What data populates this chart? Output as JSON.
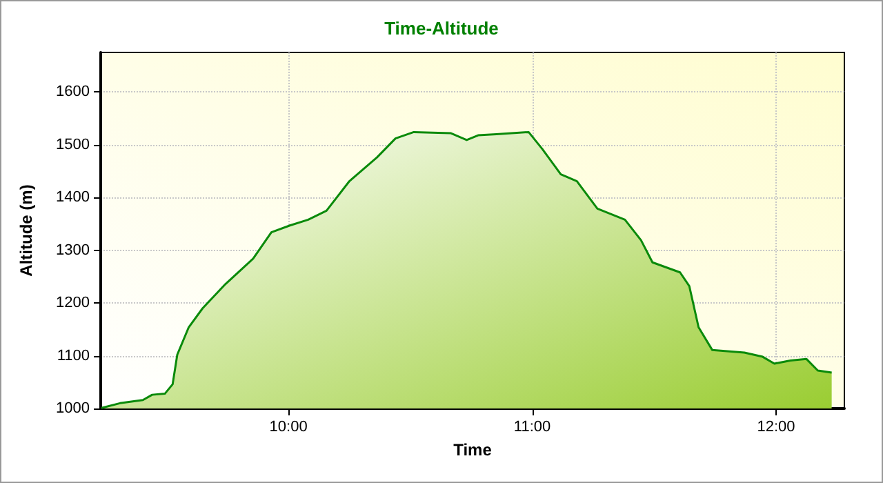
{
  "chart_data": {
    "type": "area",
    "title": "Time-Altitude",
    "xlabel": "Time",
    "ylabel": "Altitude (m)",
    "xlim": [
      9.23,
      12.28
    ],
    "ylim": [
      1000,
      1675
    ],
    "xticks": [
      {
        "value": 10,
        "label": "10:00"
      },
      {
        "value": 11,
        "label": "11:00"
      },
      {
        "value": 12,
        "label": "12:00"
      }
    ],
    "yticks": [
      1000,
      1100,
      1200,
      1300,
      1400,
      1500,
      1600
    ],
    "grid": true,
    "line_style": "solid",
    "marker": "none",
    "series": [
      {
        "color": "#0a8a0a",
        "x": [
          9.233,
          9.309,
          9.403,
          9.441,
          9.493,
          9.525,
          9.544,
          9.591,
          9.648,
          9.742,
          9.855,
          9.93,
          10.006,
          10.081,
          10.156,
          10.25,
          10.363,
          10.439,
          10.514,
          10.665,
          10.731,
          10.778,
          10.853,
          10.985,
          11.041,
          11.117,
          11.183,
          11.267,
          11.38,
          11.446,
          11.493,
          11.606,
          11.644,
          11.682,
          11.738,
          11.87,
          11.945,
          11.993,
          12.059,
          12.124,
          12.171,
          12.228
        ],
        "values": [
          1001,
          1010,
          1016,
          1026,
          1028,
          1046,
          1102,
          1154,
          1190,
          1236,
          1284,
          1334,
          1347,
          1358,
          1375,
          1431,
          1476,
          1512,
          1524,
          1522,
          1509,
          1518,
          1520,
          1524,
          1492,
          1444,
          1431,
          1379,
          1358,
          1319,
          1277,
          1258,
          1232,
          1154,
          1111,
          1106,
          1098,
          1085,
          1091,
          1094,
          1072,
          1068
        ]
      }
    ]
  }
}
